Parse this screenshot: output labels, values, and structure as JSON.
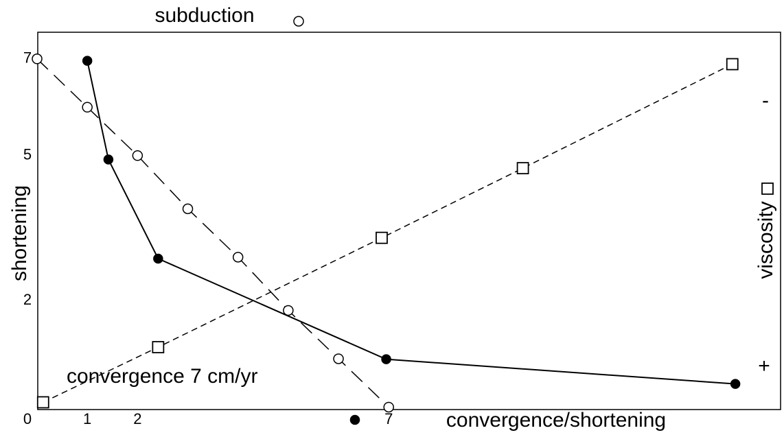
{
  "chart_data": {
    "type": "line",
    "ylabel": "shortening",
    "annotations": [
      "convergence 7 cm/yr",
      "-",
      "+"
    ],
    "xlim": [
      0,
      14.8
    ],
    "ylim": [
      -0.25,
      7.55
    ],
    "xticks": [
      0,
      1,
      2,
      7
    ],
    "yticks": [
      2,
      5,
      7
    ],
    "grid": false,
    "series": [
      {
        "name": "subduction",
        "color": "#000000",
        "marker": "open-circle",
        "line_style": "long-dash",
        "x": [
          0,
          1,
          2,
          3,
          4,
          5,
          6,
          7
        ],
        "values": [
          7,
          6,
          5,
          3.9,
          2.9,
          1.8,
          0.8,
          -0.2
        ]
      },
      {
        "name": "convergence/shortening",
        "color": "#000000",
        "marker": "filled-circle",
        "line_style": "solid",
        "x": [
          1,
          1.42,
          2.41,
          6.95,
          13.9
        ],
        "values": [
          6.96,
          4.92,
          2.87,
          0.79,
          0.28
        ]
      },
      {
        "name": "viscosity",
        "color": "#000000",
        "marker": "open-square",
        "line_style": "short-dash",
        "x": [
          0.12,
          2.41,
          6.86,
          9.67,
          13.84
        ],
        "values": [
          -0.1,
          1.04,
          3.3,
          4.74,
          6.89
        ]
      }
    ]
  }
}
